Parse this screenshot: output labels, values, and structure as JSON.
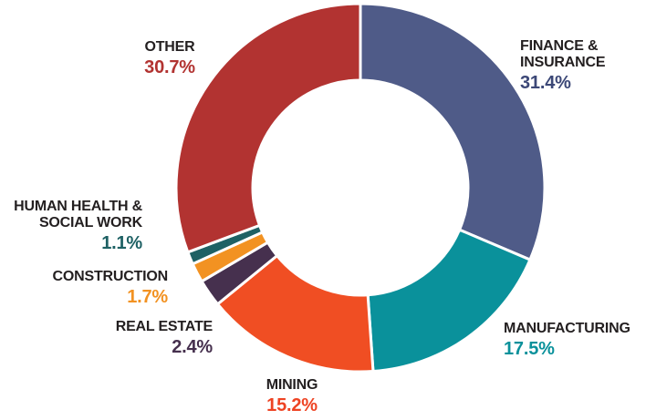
{
  "chart_data": {
    "type": "pie",
    "subtype": "donut",
    "title": "",
    "unit": "%",
    "direction": "clockwise",
    "start_angle_deg": 0,
    "legend_position": "around-labels",
    "label_text_color": "#231f20",
    "categories": [
      "FINANCE & INSURANCE",
      "MANUFACTURING",
      "MINING",
      "REAL ESTATE",
      "CONSTRUCTION",
      "HUMAN HEALTH & SOCIAL WORK",
      "OTHER"
    ],
    "values": [
      31.4,
      17.5,
      15.2,
      2.4,
      1.7,
      1.1,
      30.7
    ],
    "slices": [
      {
        "id": "finance-insurance",
        "label": "FINANCE &\nINSURANCE",
        "value": 31.4,
        "pct_label": "31.4%",
        "color": "#4f5b88",
        "pct_color": "#3c4877"
      },
      {
        "id": "manufacturing",
        "label": "MANUFACTURING",
        "value": 17.5,
        "pct_label": "17.5%",
        "color": "#0a919b",
        "pct_color": "#0a919b"
      },
      {
        "id": "mining",
        "label": "MINING",
        "value": 15.2,
        "pct_label": "15.2%",
        "color": "#f04e23",
        "pct_color": "#ee4323"
      },
      {
        "id": "real-estate",
        "label": "REAL ESTATE",
        "value": 2.4,
        "pct_label": "2.4%",
        "color": "#46304e",
        "pct_color": "#46304e"
      },
      {
        "id": "construction",
        "label": "CONSTRUCTION",
        "value": 1.7,
        "pct_label": "1.7%",
        "color": "#f29222",
        "pct_color": "#f29222"
      },
      {
        "id": "human-health-social-work",
        "label": "HUMAN HEALTH &\nSOCIAL WORK",
        "value": 1.1,
        "pct_label": "1.1%",
        "color": "#1e6164",
        "pct_color": "#1e6164"
      },
      {
        "id": "other",
        "label": "OTHER",
        "value": 30.7,
        "pct_label": "30.7%",
        "color": "#b23331",
        "pct_color": "#b23331"
      }
    ]
  }
}
